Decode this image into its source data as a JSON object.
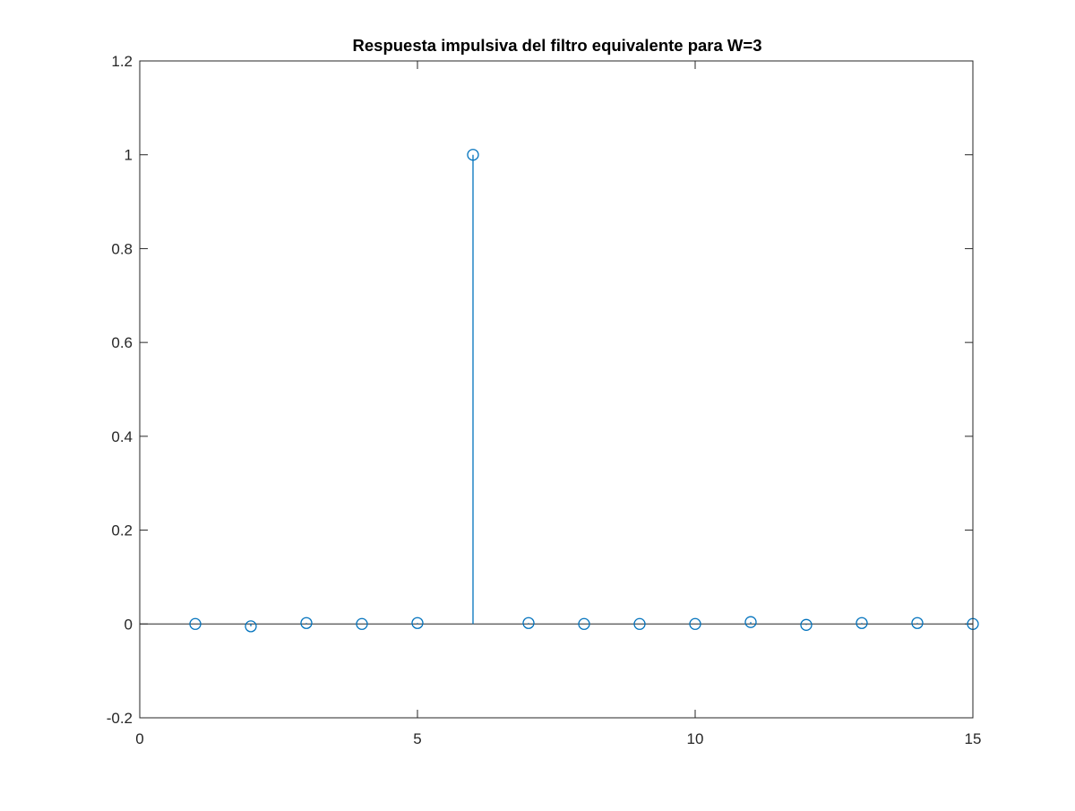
{
  "chart_data": {
    "type": "stem",
    "title": "Respuesta impulsiva del filtro equivalente para W=3",
    "xlabel": "",
    "ylabel": "",
    "xlim": [
      0,
      15
    ],
    "ylim": [
      -0.2,
      1.2
    ],
    "xticks": [
      0,
      5,
      10,
      15
    ],
    "xtick_labels": [
      "0",
      "5",
      "10",
      "15"
    ],
    "yticks": [
      -0.2,
      0,
      0.2,
      0.4,
      0.6,
      0.8,
      1,
      1.2
    ],
    "ytick_labels": [
      "-0.2",
      "0",
      "0.2",
      "0.4",
      "0.6",
      "0.8",
      "1",
      "1.2"
    ],
    "grid": false,
    "baseline": 0,
    "series": [
      {
        "x": [
          1,
          2,
          3,
          4,
          5,
          6,
          7,
          8,
          9,
          10,
          11,
          12,
          13,
          14,
          15
        ],
        "y": [
          0,
          -0.005,
          0.002,
          0,
          0.002,
          1,
          0.002,
          0,
          0,
          0,
          0.004,
          -0.002,
          0.002,
          0.002,
          0
        ],
        "marker": "circle",
        "color": "#0072BD"
      }
    ]
  }
}
